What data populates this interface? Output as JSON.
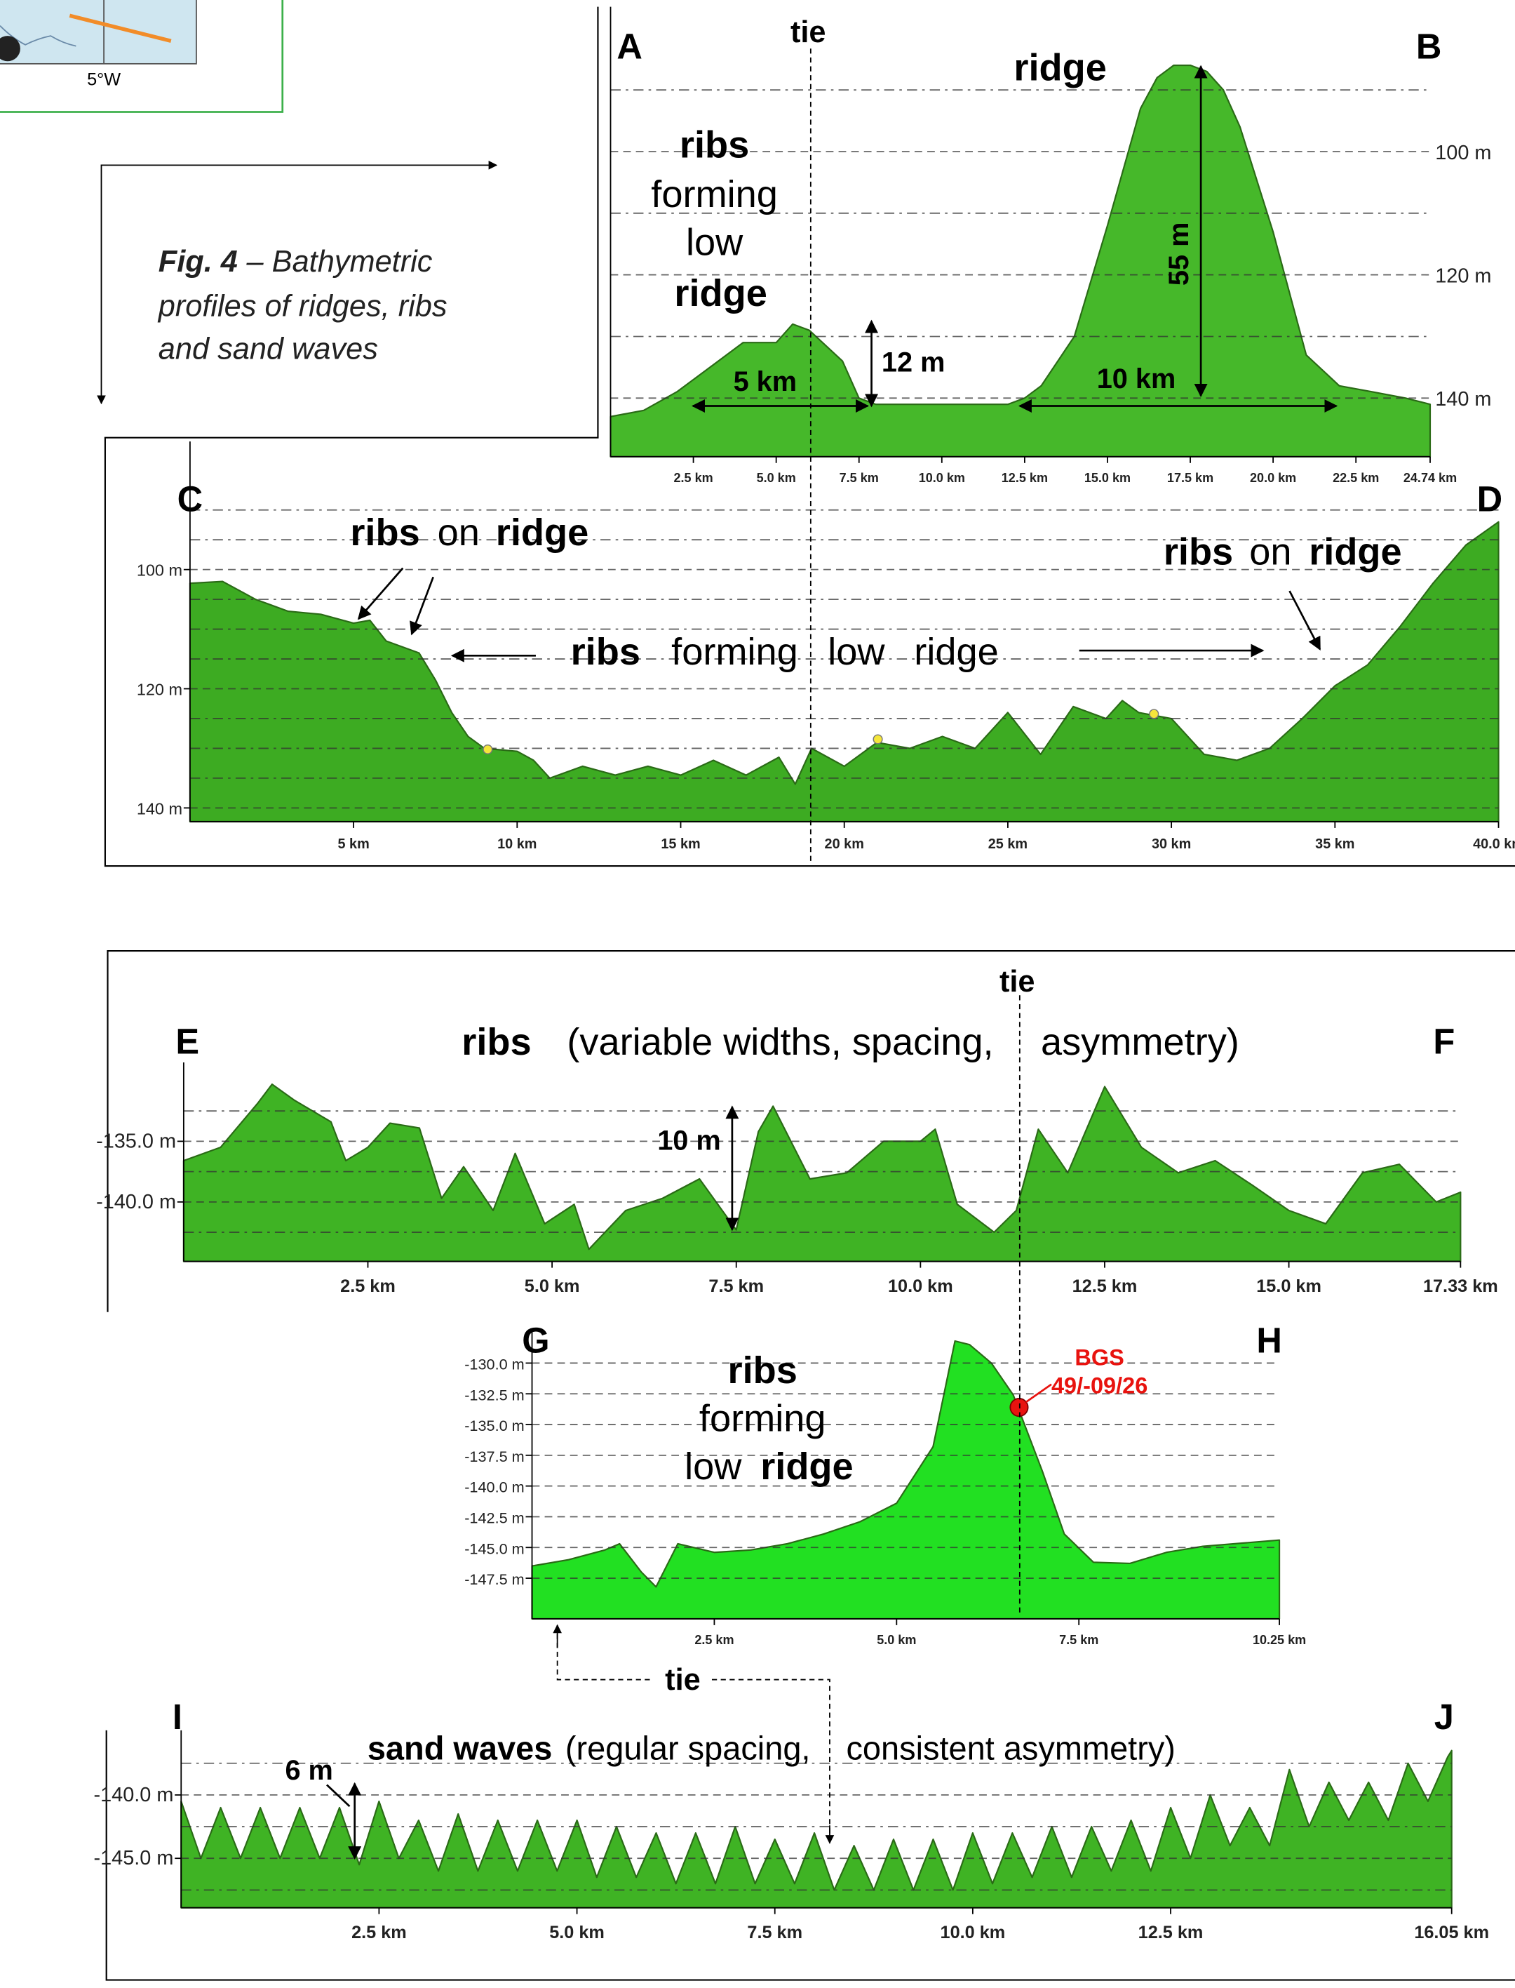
{
  "map": {
    "label": "5°W"
  },
  "figure": {
    "number": "Fig. 4",
    "caption": [
      "– Bathymetric",
      "profiles of ridges, ribs",
      "and sand waves"
    ]
  },
  "chart_data": [
    {
      "type": "area",
      "color": "#46b82a",
      "x": [
        0,
        1,
        2,
        3,
        4,
        5,
        5.5,
        6,
        7,
        7.5,
        8,
        9,
        10,
        11,
        12,
        12.5,
        13,
        14,
        15,
        16,
        16.5,
        17,
        17.5,
        18,
        18.5,
        19,
        20,
        21,
        22,
        23,
        24,
        24.74
      ],
      "values": [
        143,
        142,
        139,
        135,
        131,
        131,
        128,
        129,
        134,
        140,
        141,
        141,
        141,
        141,
        141,
        140,
        138,
        130,
        112,
        93,
        88,
        86,
        86,
        87,
        90,
        96,
        113,
        133,
        138,
        139,
        140,
        141
      ],
      "xlim": [
        0,
        24.74
      ],
      "ylim": [
        149.5,
        76.5
      ],
      "xticks": [
        {
          "value": 2.5,
          "label": "2.5 km"
        },
        {
          "value": 5,
          "label": "5.0 km"
        },
        {
          "value": 7.5,
          "label": "7.5 km"
        },
        {
          "value": 10,
          "label": "10.0 km"
        },
        {
          "value": 12.5,
          "label": "12.5 km"
        },
        {
          "value": 15,
          "label": "15.0 km"
        },
        {
          "value": 17.5,
          "label": "17.5 km"
        },
        {
          "value": 20,
          "label": "20.0 km"
        },
        {
          "value": 22.5,
          "label": "22.5 km"
        },
        {
          "value": 24.74,
          "label": "24.74 km"
        }
      ],
      "yticks": [
        {
          "value": 100,
          "label": "100 m"
        },
        {
          "value": 120,
          "label": "120 m"
        },
        {
          "value": 140,
          "label": "140 m"
        }
      ],
      "minor_yticks": [
        90,
        110,
        130
      ],
      "annotations": [
        "A",
        "B",
        "tie",
        "ridge",
        "ribs",
        "forming",
        "low",
        "ridge",
        "55 m",
        "12 m",
        "5 km",
        "10 km"
      ]
    },
    {
      "type": "area",
      "color": "#3dab22",
      "x": [
        0,
        1,
        2,
        3,
        4,
        5,
        5.5,
        6,
        7,
        7.5,
        8,
        8.5,
        9,
        10,
        10.5,
        11,
        12,
        13,
        14,
        15,
        16,
        17,
        18,
        18.5,
        19,
        20,
        21,
        22,
        23,
        24,
        25,
        26,
        27,
        28,
        28.5,
        29,
        30,
        31,
        32,
        33,
        34,
        35,
        36,
        37,
        38,
        39,
        40
      ],
      "values": [
        102.3,
        102,
        105,
        107,
        107.5,
        109,
        108.5,
        112,
        114,
        118.5,
        124,
        128,
        130,
        130.5,
        132,
        135,
        133,
        134.5,
        133,
        134.5,
        132,
        134.5,
        131.5,
        136,
        130,
        133,
        129,
        130,
        128,
        130,
        124,
        131,
        123,
        125,
        122,
        124,
        125,
        131,
        132,
        130,
        125,
        119.5,
        116,
        109.5,
        102.3,
        95.9,
        92
      ],
      "xlim": [
        0,
        40
      ],
      "ylim": [
        142.3,
        78.5
      ],
      "xticks": [
        {
          "value": 5,
          "label": "5 km"
        },
        {
          "value": 10,
          "label": "10 km"
        },
        {
          "value": 15,
          "label": "15 km"
        },
        {
          "value": 20,
          "label": "20 km"
        },
        {
          "value": 25,
          "label": "25 km"
        },
        {
          "value": 30,
          "label": "30 km"
        },
        {
          "value": 35,
          "label": "35 km"
        },
        {
          "value": 40,
          "label": "40.0 km"
        }
      ],
      "yticks": [
        {
          "value": 100,
          "label": "100 m"
        },
        {
          "value": 120,
          "label": "120 m"
        },
        {
          "value": 140,
          "label": "140 m"
        }
      ],
      "minor_yticks": [
        90,
        95,
        105,
        110,
        115,
        125,
        130,
        135
      ],
      "annotations": [
        "C",
        "D",
        "ribs",
        "on",
        "ridge",
        "ribs",
        "on",
        "ridge",
        "ribs",
        "forming",
        "low",
        "ridge"
      ]
    },
    {
      "type": "area",
      "color": "#3fb324",
      "x": [
        0,
        0.5,
        1,
        1.2,
        1.5,
        2,
        2.2,
        2.5,
        2.8,
        3.2,
        3.5,
        3.8,
        4.2,
        4.5,
        4.9,
        5.3,
        5.5,
        6,
        6.5,
        7,
        7.5,
        7.8,
        8,
        8.5,
        9,
        9.5,
        10,
        10.2,
        10.5,
        11,
        11.3,
        11.6,
        12,
        12.5,
        13,
        13.5,
        14,
        14.5,
        15,
        15.5,
        16,
        16.5,
        17,
        17.33
      ],
      "values": [
        -136.6,
        -135.5,
        -131.9,
        -130.3,
        -131.6,
        -133.4,
        -136.6,
        -135.5,
        -133.5,
        -133.9,
        -139.7,
        -137.1,
        -140.7,
        -136,
        -141.8,
        -140.2,
        -143.9,
        -140.7,
        -139.7,
        -138.1,
        -142.3,
        -134.2,
        -132.1,
        -138.1,
        -137.6,
        -135,
        -135,
        -134,
        -140.2,
        -142.5,
        -140.7,
        -134,
        -137.6,
        -130.5,
        -135.5,
        -137.6,
        -136.6,
        -138.6,
        -140.7,
        -141.8,
        -137.6,
        -136.9,
        -140,
        -139.2
      ],
      "xlim": [
        0,
        17.33
      ],
      "ylim": [
        -144.9,
        -128.5
      ],
      "xticks": [
        {
          "value": 2.5,
          "label": "2.5 km"
        },
        {
          "value": 5,
          "label": "5.0 km"
        },
        {
          "value": 7.5,
          "label": "7.5 km"
        },
        {
          "value": 10,
          "label": "10.0 km"
        },
        {
          "value": 12.5,
          "label": "12.5 km"
        },
        {
          "value": 15,
          "label": "15.0 km"
        },
        {
          "value": 17.33,
          "label": "17.33 km"
        }
      ],
      "yticks": [
        {
          "value": -135,
          "label": "-135.0 m"
        },
        {
          "value": -140,
          "label": "-140.0 m"
        }
      ],
      "minor_yticks": [
        -132.5,
        -137.5,
        -142.5
      ],
      "annotations": [
        "E",
        "F",
        "tie",
        "ribs",
        "(variable widths, spacing,",
        "asymmetry)",
        "10 m"
      ]
    },
    {
      "type": "area",
      "color": "#22e022",
      "x": [
        0,
        0.5,
        1,
        1.2,
        1.5,
        1.7,
        2,
        2.5,
        3,
        3.5,
        4,
        4.5,
        5,
        5.5,
        5.8,
        6,
        6.3,
        6.6,
        7,
        7.3,
        7.7,
        8.2,
        8.7,
        9.2,
        10.25
      ],
      "values": [
        -146.5,
        -146,
        -145.2,
        -144.7,
        -147,
        -148.2,
        -144.7,
        -145.4,
        -145.2,
        -144.7,
        -143.9,
        -142.9,
        -141.4,
        -136.8,
        -128.2,
        -128.5,
        -130,
        -132.6,
        -138.8,
        -143.9,
        -146.2,
        -146.3,
        -145.4,
        -144.9,
        -144.4
      ],
      "xlim": [
        0,
        10.25
      ],
      "ylim": [
        -150.8,
        -127.4
      ],
      "xticks": [
        {
          "value": 2.5,
          "label": "2.5 km"
        },
        {
          "value": 5,
          "label": "5.0 km"
        },
        {
          "value": 7.5,
          "label": "7.5 km"
        },
        {
          "value": 10.25,
          "label": "10.25 km"
        }
      ],
      "yticks": [
        {
          "value": -130,
          "label": "-130.0 m"
        },
        {
          "value": -132.5,
          "label": "-132.5 m"
        },
        {
          "value": -135,
          "label": "-135.0 m"
        },
        {
          "value": -137.5,
          "label": "-137.5 m"
        },
        {
          "value": -140,
          "label": "-140.0 m"
        },
        {
          "value": -142.5,
          "label": "-142.5 m"
        },
        {
          "value": -145,
          "label": "-145.0 m"
        },
        {
          "value": -147.5,
          "label": "-147.5 m"
        }
      ],
      "minor_yticks": [],
      "point": {
        "x": 6.68,
        "y": -133.6,
        "color": "#e8130f"
      },
      "annotations": [
        "G",
        "H",
        "ribs",
        "forming",
        "low",
        "ridge",
        "BGS",
        "49/-09/26"
      ]
    },
    {
      "type": "area",
      "color": "#3fb324",
      "x": [
        0,
        0.25,
        0.5,
        0.75,
        1,
        1.25,
        1.5,
        1.75,
        2,
        2.25,
        2.5,
        2.75,
        3,
        3.25,
        3.5,
        3.75,
        4,
        4.25,
        4.5,
        4.75,
        5,
        5.25,
        5.5,
        5.75,
        6,
        6.25,
        6.5,
        6.75,
        7,
        7.25,
        7.5,
        7.75,
        8,
        8.25,
        8.5,
        8.75,
        9,
        9.25,
        9.5,
        9.75,
        10,
        10.25,
        10.5,
        10.75,
        11,
        11.25,
        11.5,
        11.75,
        12,
        12.25,
        12.5,
        12.75,
        13,
        13.25,
        13.5,
        13.75,
        14,
        14.25,
        14.5,
        14.75,
        15,
        15.25,
        15.5,
        15.75,
        16,
        16.05
      ],
      "values": [
        -140.5,
        -145,
        -141,
        -145,
        -141,
        -145,
        -141,
        -145,
        -141,
        -145.5,
        -140.5,
        -145,
        -142,
        -146,
        -141.5,
        -146,
        -142,
        -146,
        -142,
        -146,
        -142,
        -146.5,
        -142.5,
        -146.5,
        -143,
        -147,
        -143,
        -147,
        -142.5,
        -147,
        -143.5,
        -147,
        -143,
        -147.5,
        -144,
        -147.5,
        -143.5,
        -147.5,
        -143.5,
        -147.5,
        -143,
        -147,
        -143,
        -146.5,
        -142.5,
        -146.5,
        -142.5,
        -146,
        -142,
        -146,
        -141,
        -145,
        -140,
        -144,
        -141,
        -144,
        -138,
        -142.5,
        -139,
        -142,
        -139,
        -142,
        -137.5,
        -140.5,
        -137,
        -136.5
      ],
      "xlim": [
        0,
        16.05
      ],
      "ylim": [
        -148.9,
        -134.9
      ],
      "xticks": [
        {
          "value": 2.5,
          "label": "2.5 km"
        },
        {
          "value": 5,
          "label": "5.0 km"
        },
        {
          "value": 7.5,
          "label": "7.5 km"
        },
        {
          "value": 10,
          "label": "10.0 km"
        },
        {
          "value": 12.5,
          "label": "12.5 km"
        },
        {
          "value": 16.05,
          "label": "16.05 km"
        }
      ],
      "yticks": [
        {
          "value": -140,
          "label": "-140.0 m"
        },
        {
          "value": -145,
          "label": "-145.0 m"
        }
      ],
      "minor_yticks": [
        -137.5,
        -142.5,
        -147.5
      ],
      "annotations": [
        "I",
        "J",
        "sand waves",
        "(regular spacing,",
        "consistent asymmetry)",
        "6 m",
        "tie"
      ]
    }
  ]
}
